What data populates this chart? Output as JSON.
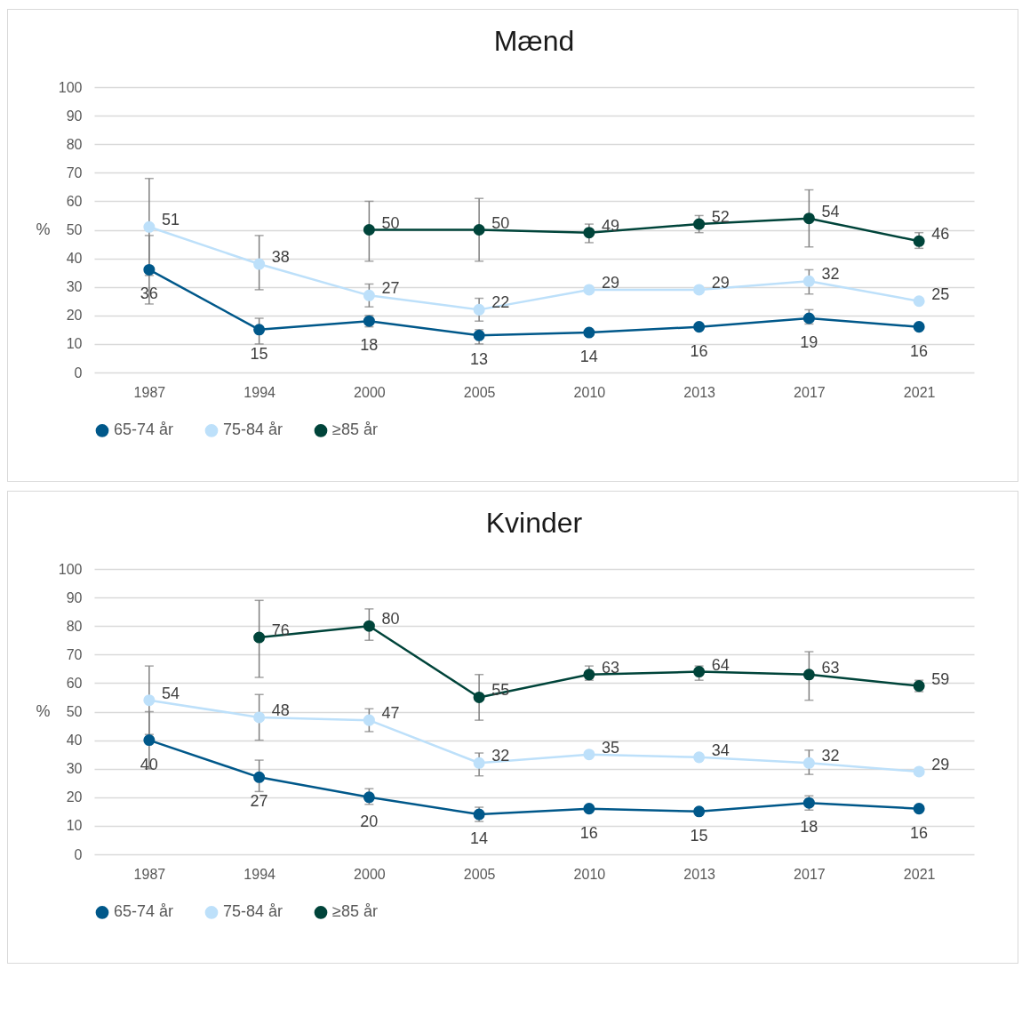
{
  "chart_data": [
    {
      "type": "line",
      "title": "Mænd",
      "ylabel": "%",
      "categories": [
        "1987",
        "1994",
        "2000",
        "2005",
        "2010",
        "2013",
        "2017",
        "2021"
      ],
      "ylim": [
        0,
        100
      ],
      "yticks": [
        0,
        10,
        20,
        30,
        40,
        50,
        60,
        70,
        80,
        90,
        100
      ],
      "grid": "y",
      "legend": "bottom",
      "marker": "circle",
      "line_style": "solid",
      "data_labels": true,
      "series": [
        {
          "name": "65-74 år",
          "color": "#00588a",
          "values": [
            36,
            15,
            18,
            13,
            14,
            16,
            19,
            16
          ],
          "errors": [
            [
              24,
              48
            ],
            [
              10,
              19
            ],
            [
              16,
              20
            ],
            [
              10,
              15
            ],
            null,
            null,
            [
              17,
              22
            ],
            null
          ]
        },
        {
          "name": "75-84 år",
          "color": "#bde0fa",
          "values": [
            51,
            38,
            27,
            22,
            29,
            29,
            32,
            25
          ],
          "errors": [
            [
              34,
              68
            ],
            [
              29,
              48
            ],
            [
              23,
              31
            ],
            [
              18,
              26
            ],
            null,
            null,
            [
              27.5,
              36
            ],
            null
          ]
        },
        {
          "name": "≥85 år",
          "color": "#00443a",
          "values": [
            null,
            null,
            50,
            50,
            49,
            52,
            54,
            46
          ],
          "errors": [
            null,
            null,
            [
              39,
              60
            ],
            [
              39,
              61
            ],
            [
              45.5,
              52
            ],
            [
              49,
              55
            ],
            [
              44,
              64
            ],
            [
              43.5,
              49
            ]
          ]
        }
      ]
    },
    {
      "type": "line",
      "title": "Kvinder",
      "ylabel": "%",
      "categories": [
        "1987",
        "1994",
        "2000",
        "2005",
        "2010",
        "2013",
        "2017",
        "2021"
      ],
      "ylim": [
        0,
        100
      ],
      "yticks": [
        0,
        10,
        20,
        30,
        40,
        50,
        60,
        70,
        80,
        90,
        100
      ],
      "grid": "y",
      "legend": "bottom",
      "marker": "circle",
      "line_style": "solid",
      "data_labels": true,
      "series": [
        {
          "name": "65-74 år",
          "color": "#00588a",
          "values": [
            40,
            27,
            20,
            14,
            16,
            15,
            18,
            16
          ],
          "errors": [
            [
              30,
              50
            ],
            [
              22,
              33
            ],
            [
              17.5,
              23
            ],
            [
              11.5,
              16.5
            ],
            null,
            null,
            [
              15.5,
              20.5
            ],
            null
          ]
        },
        {
          "name": "75-84 år",
          "color": "#bde0fa",
          "values": [
            54,
            48,
            47,
            32,
            35,
            34,
            32,
            29
          ],
          "errors": [
            [
              42,
              66
            ],
            [
              40,
              56
            ],
            [
              43,
              51
            ],
            [
              27.5,
              35.5
            ],
            null,
            null,
            [
              28,
              36.5
            ],
            null
          ]
        },
        {
          "name": "≥85 år",
          "color": "#00443a",
          "values": [
            null,
            76,
            80,
            55,
            63,
            64,
            63,
            59
          ],
          "errors": [
            null,
            [
              62,
              89
            ],
            [
              75,
              86
            ],
            [
              47,
              63
            ],
            [
              61,
              66
            ],
            [
              61,
              66
            ],
            [
              54,
              71
            ],
            [
              57,
              61
            ]
          ]
        }
      ]
    }
  ]
}
